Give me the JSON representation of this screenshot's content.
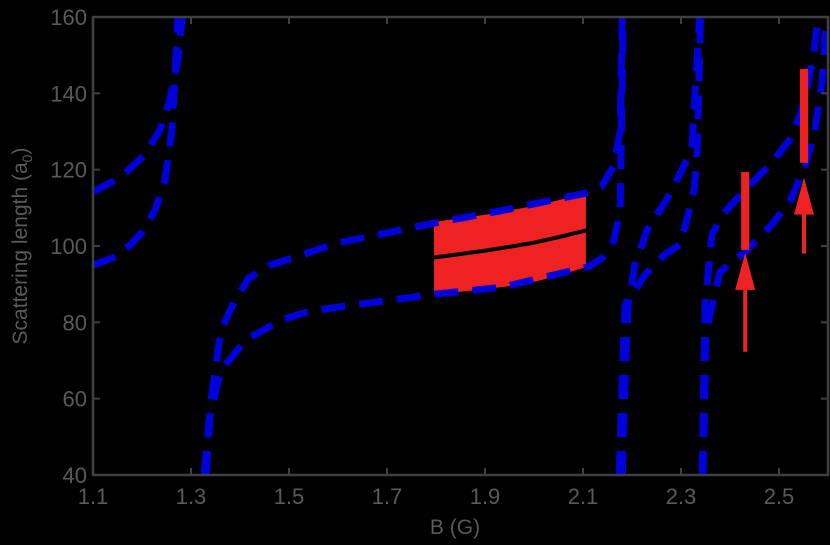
{
  "chart_data": {
    "type": "line",
    "title": "",
    "xlabel": "B (G)",
    "ylabel": "Scattering length (a",
    "ylabel_subscript": "0",
    "ylabel_suffix": ")",
    "xlim": [
      1.1,
      2.6
    ],
    "ylim": [
      40,
      160
    ],
    "x_ticks": [
      1.1,
      1.3,
      1.5,
      1.7,
      1.9,
      2.1,
      2.3,
      2.5
    ],
    "x_tick_labels": [
      "1.1",
      "1.3",
      "1.5",
      "1.7",
      "1.9",
      "2.1",
      "2.3",
      "2.5"
    ],
    "y_ticks": [
      40,
      60,
      80,
      100,
      120,
      140,
      160
    ],
    "y_tick_labels": [
      "40",
      "60",
      "80",
      "100",
      "120",
      "140",
      "160"
    ],
    "grid": false,
    "legend": null,
    "colors": {
      "background": "#000000",
      "axis": "#404040",
      "text": "#5a5a5a",
      "bound": "#0000dd",
      "band": "#ee2222",
      "central": "#000000",
      "marker": "#ee2222"
    },
    "series": [
      {
        "name": "upper bound (segment 1)",
        "style": "dashed",
        "color": "#0000dd",
        "x": [
          1.1,
          1.155,
          1.206,
          1.237,
          1.257,
          1.273,
          1.282
        ],
        "y": [
          114.2,
          117.9,
          123.9,
          130.5,
          138.3,
          148.8,
          160.0
        ]
      },
      {
        "name": "lower bound (segment 1)",
        "style": "dashed",
        "color": "#0000dd",
        "x": [
          1.1,
          1.155,
          1.196,
          1.227,
          1.247,
          1.261,
          1.269,
          1.273
        ],
        "y": [
          95.0,
          97.6,
          102.9,
          109.4,
          117.3,
          130.4,
          148.7,
          160.0
        ]
      },
      {
        "name": "upper bound (segment 2)",
        "style": "dashed",
        "color": "#0000dd",
        "x": [
          1.331,
          1.341,
          1.361,
          1.39,
          1.418,
          1.459,
          1.506,
          1.596,
          1.8,
          1.935,
          2.11,
          2.139,
          2.163,
          2.176,
          2.18
        ],
        "y": [
          40.0,
          59.6,
          78.0,
          85.8,
          91.6,
          94.9,
          96.8,
          100.7,
          106.1,
          109.3,
          114.0,
          115.8,
          121.1,
          130.2,
          160.0
        ]
      },
      {
        "name": "lower bound (segment 2)",
        "style": "dashed",
        "color": "#0000dd",
        "x": [
          1.327,
          1.337,
          1.361,
          1.412,
          1.484,
          1.539,
          1.627,
          1.8,
          1.935,
          2.11,
          2.139,
          2.163,
          2.176,
          2.182
        ],
        "y": [
          40.0,
          54.4,
          67.5,
          75.4,
          80.6,
          82.8,
          84.5,
          87.4,
          89.2,
          94.5,
          96.8,
          101.5,
          109.4,
          160.0
        ]
      },
      {
        "name": "upper bound (segment 3)",
        "style": "dashed",
        "color": "#0000dd",
        "x": [
          2.18,
          2.186,
          2.192,
          2.206,
          2.231,
          2.271,
          2.302,
          2.322,
          2.338
        ],
        "y": [
          40.0,
          65.0,
          84.6,
          95.1,
          104.3,
          112.2,
          120.0,
          125.3,
          160.0
        ]
      },
      {
        "name": "lower bound (segment 3)",
        "style": "dashed",
        "color": "#0000dd",
        "x": [
          2.174,
          2.18,
          2.186,
          2.227,
          2.267,
          2.298,
          2.312,
          2.327,
          2.333,
          2.34
        ],
        "y": [
          40.0,
          65.0,
          84.6,
          92.5,
          97.8,
          100.4,
          106.9,
          114.8,
          125.0,
          160.0
        ]
      },
      {
        "name": "upper bound (segment 4)",
        "style": "dashed",
        "color": "#0000dd",
        "x": [
          2.343,
          2.349,
          2.363,
          2.384,
          2.431,
          2.482,
          2.522,
          2.543,
          2.559,
          2.573,
          2.58
        ],
        "y": [
          40.0,
          84.6,
          102.9,
          108.1,
          114.8,
          121.3,
          127.9,
          134.4,
          142.3,
          152.7,
          160.0
        ]
      },
      {
        "name": "lower bound (segment 4)",
        "style": "dashed",
        "color": "#0000dd",
        "x": [
          2.345,
          2.351,
          2.38,
          2.431,
          2.482,
          2.522,
          2.553,
          2.573,
          2.588,
          2.596
        ],
        "y": [
          40.0,
          77.6,
          93.3,
          98.5,
          105.1,
          111.6,
          120.8,
          130.0,
          143.1,
          160.0
        ]
      },
      {
        "name": "central value",
        "style": "solid",
        "color": "#000000",
        "x": [
          1.796,
          1.85,
          1.9,
          1.95,
          2.0,
          2.05,
          2.106
        ],
        "y": [
          97.0,
          97.9,
          98.8,
          99.8,
          100.9,
          102.3,
          104.1
        ]
      }
    ],
    "band": {
      "name": "uncertainty band",
      "color": "#ee2222",
      "x": [
        1.796,
        1.85,
        1.9,
        1.95,
        2.0,
        2.05,
        2.106
      ],
      "upper": [
        106.3,
        107.3,
        108.2,
        109.3,
        110.5,
        112.0,
        114.0
      ],
      "lower": [
        87.4,
        88.0,
        88.7,
        89.5,
        90.6,
        92.2,
        94.5
      ]
    },
    "markers": [
      {
        "type": "vertical_bar",
        "x": 2.431,
        "y_low": 99.0,
        "y_high": 119.4
      },
      {
        "type": "vertical_bar",
        "x": 2.551,
        "y_low": 121.8,
        "y_high": 146.4
      },
      {
        "type": "arrow_up",
        "x": 2.431,
        "y_tail": 72.3,
        "y_tip": 98.2
      },
      {
        "type": "arrow_up",
        "x": 2.551,
        "y_tail": 98.0,
        "y_tip": 117.9
      }
    ]
  }
}
